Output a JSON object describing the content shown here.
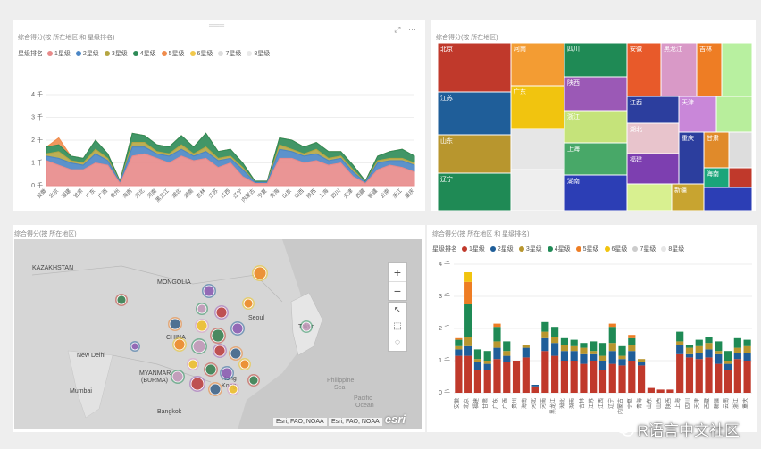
{
  "area_chart": {
    "title": "综合得分(按 所在地区 和 星级排名)",
    "legend_title": "星级排名",
    "toolbar": [
      "⤢",
      "···"
    ],
    "handle": "═══"
  },
  "treemap": {
    "title": "综合得分(按 所在地区)"
  },
  "map": {
    "title": "综合得分(按 所在地区)",
    "labels": [
      {
        "text": "KAZAKHSTAN"
      },
      {
        "text": "MONGOLIA"
      },
      {
        "text": "CHINA"
      },
      {
        "text": "New Delhi"
      },
      {
        "text": "Mumbai"
      },
      {
        "text": "MYANMAR"
      },
      {
        "text": "(BURMA)"
      },
      {
        "text": "Bangkok"
      },
      {
        "text": "Philippine"
      },
      {
        "text": "Sea"
      },
      {
        "text": "Pacific"
      },
      {
        "text": "Ocean"
      },
      {
        "text": "Tokyo"
      },
      {
        "text": "Seoul"
      },
      {
        "text": "Hong"
      },
      {
        "text": "Kong"
      }
    ],
    "zoom_in": "+",
    "zoom_out": "−",
    "attribution_1": "Esri, FAO, NOAA",
    "attribution_2": "Esri, FAO, NOAA",
    "esri": "esri"
  },
  "bar_chart": {
    "title": "综合得分(按 所在地区 和 星级排名)",
    "legend_title": "星级排名"
  },
  "watermark": "R语言中文社区",
  "chart_data": [
    {
      "type": "area",
      "title": "综合得分(按 所在地区 和 星级排名)",
      "legend_title": "星级排名",
      "y_ticks": [
        "0 千",
        "1 千",
        "2 千",
        "3 千",
        "4 千"
      ],
      "ylim": [
        0,
        4000
      ],
      "categories": [
        "安徽",
        "北京",
        "福建",
        "甘肃",
        "广东",
        "广西",
        "贵州",
        "海南",
        "河北",
        "河南",
        "黑龙江",
        "湖北",
        "湖南",
        "吉林",
        "江苏",
        "江西",
        "辽宁",
        "内蒙古",
        "宁夏",
        "青海",
        "山东",
        "山西",
        "陕西",
        "上海",
        "四川",
        "天津",
        "西藏",
        "新疆",
        "云南",
        "浙江",
        "重庆"
      ],
      "x_labels": [
        "安徽",
        "北京",
        "福建",
        "甘肃",
        "广东",
        "广西",
        "贵州",
        "海南",
        "河北",
        "河南",
        "黑龙江",
        "湖北",
        "湖南",
        "吉林",
        "江苏",
        "江西",
        "辽宁",
        "内蒙古",
        "宁夏",
        "青海",
        "山东",
        "山西",
        "陕西",
        "上海",
        "四川",
        "天津",
        "西藏",
        "新疆",
        "云南",
        "浙江",
        "重庆"
      ],
      "series": [
        {
          "name": "1星级",
          "color": "#e88a8a",
          "values": [
            1100,
            900,
            700,
            700,
            1000,
            900,
            100,
            1300,
            1400,
            1200,
            1000,
            1300,
            1100,
            1200,
            800,
            1000,
            400,
            100,
            100,
            1200,
            1200,
            1000,
            1100,
            900,
            1000,
            400,
            100,
            700,
            900,
            800,
            600
          ]
        },
        {
          "name": "2星级",
          "color": "#4a86c5",
          "values": [
            200,
            300,
            300,
            200,
            400,
            200,
            50,
            400,
            300,
            200,
            300,
            300,
            200,
            300,
            300,
            200,
            300,
            50,
            50,
            400,
            300,
            300,
            300,
            200,
            200,
            200,
            50,
            300,
            200,
            300,
            300
          ]
        },
        {
          "name": "3星级",
          "color": "#b5a642",
          "values": [
            100,
            300,
            100,
            100,
            200,
            100,
            0,
            200,
            200,
            100,
            100,
            200,
            100,
            200,
            100,
            100,
            100,
            0,
            0,
            200,
            100,
            100,
            200,
            100,
            100,
            100,
            0,
            100,
            100,
            100,
            100
          ]
        },
        {
          "name": "4星级",
          "color": "#2e8b57",
          "values": [
            300,
            300,
            200,
            200,
            400,
            200,
            50,
            400,
            300,
            300,
            300,
            400,
            300,
            600,
            300,
            300,
            200,
            50,
            50,
            300,
            400,
            300,
            300,
            300,
            200,
            200,
            50,
            200,
            300,
            400,
            300
          ]
        },
        {
          "name": "5星级",
          "color": "#f08c4c",
          "values": [
            0,
            300,
            0,
            0,
            0,
            0,
            0,
            0,
            0,
            0,
            0,
            0,
            0,
            0,
            0,
            0,
            0,
            0,
            0,
            0,
            0,
            0,
            0,
            0,
            0,
            0,
            0,
            0,
            0,
            0,
            0
          ]
        },
        {
          "name": "6星级",
          "color": "#f2c94c",
          "values": [
            0,
            0,
            0,
            0,
            0,
            0,
            0,
            0,
            0,
            0,
            0,
            0,
            0,
            0,
            0,
            0,
            0,
            0,
            0,
            0,
            0,
            0,
            0,
            0,
            0,
            0,
            0,
            0,
            0,
            0,
            0
          ]
        },
        {
          "name": "7星级",
          "color": "#dddddd",
          "values": [
            0,
            0,
            0,
            0,
            0,
            0,
            0,
            0,
            0,
            0,
            0,
            0,
            0,
            0,
            0,
            0,
            0,
            0,
            0,
            0,
            0,
            0,
            0,
            0,
            0,
            0,
            0,
            0,
            0,
            0,
            0
          ]
        },
        {
          "name": "8星级",
          "color": "#e9e9e9",
          "values": [
            0,
            0,
            0,
            0,
            0,
            0,
            0,
            0,
            0,
            0,
            0,
            0,
            0,
            0,
            0,
            0,
            0,
            0,
            0,
            0,
            0,
            0,
            0,
            0,
            0,
            0,
            0,
            0,
            0,
            0,
            0
          ]
        }
      ]
    },
    {
      "type": "treemap",
      "title": "综合得分(按 所在地区)",
      "items": [
        {
          "label": "北京",
          "color": "#c0392b"
        },
        {
          "label": "江苏",
          "color": "#1f5e99"
        },
        {
          "label": "山东",
          "color": "#b8962e"
        },
        {
          "label": "辽宁",
          "color": "#1f8a55"
        },
        {
          "label": "河南",
          "color": "#f39c33"
        },
        {
          "label": "广东",
          "color": "#f1c40f"
        },
        {
          "label": "",
          "color": "#e6e6e6"
        },
        {
          "label": "",
          "color": "#eeeeee"
        },
        {
          "label": "四川",
          "color": "#1f8a55"
        },
        {
          "label": "陕西",
          "color": "#9b59b6"
        },
        {
          "label": "浙江",
          "color": "#c5e37a"
        },
        {
          "label": "上海",
          "color": "#48a868"
        },
        {
          "label": "湖南",
          "color": "#2c3eb5"
        },
        {
          "label": "安徽",
          "color": "#e85a2a"
        },
        {
          "label": "黑龙江",
          "color": "#d999c7"
        },
        {
          "label": "吉林",
          "color": "#ee7d24"
        },
        {
          "label": "",
          "color": "#b8f0a0"
        },
        {
          "label": "江西",
          "color": "#2c3e9e"
        },
        {
          "label": "天津",
          "color": "#c987d9"
        },
        {
          "label": "",
          "color": "#b8ee9c"
        },
        {
          "label": "湖北",
          "color": "#e8c4cc"
        },
        {
          "label": "福建",
          "color": "#7d3fb0"
        },
        {
          "label": "",
          "color": "#d8f090"
        },
        {
          "label": "新疆",
          "color": "#c8a430"
        },
        {
          "label": "重庆",
          "color": "#2c3e9e"
        },
        {
          "label": "甘肃",
          "color": "#e08a2a"
        },
        {
          "label": "",
          "color": "#dddddd"
        },
        {
          "label": "海南",
          "color": "#1aa57a"
        },
        {
          "label": "",
          "color": "#c0392b"
        },
        {
          "label": "",
          "color": "#2c3eb5"
        }
      ]
    },
    {
      "type": "bar",
      "stacked": true,
      "title": "综合得分(按 所在地区 和 星级排名)",
      "legend_title": "星级排名",
      "y_ticks": [
        "0 千",
        "1 千",
        "2 千",
        "3 千",
        "4 千"
      ],
      "ylim": [
        0,
        4000
      ],
      "categories": [
        "安徽",
        "北京",
        "福建",
        "甘肃",
        "广东",
        "广西",
        "贵州",
        "海南",
        "河北",
        "河南",
        "黑龙江",
        "湖北",
        "湖南",
        "吉林",
        "江苏",
        "江西",
        "辽宁",
        "内蒙古",
        "宁夏",
        "青海",
        "山东",
        "山西",
        "陕西",
        "上海",
        "四川",
        "天津",
        "西藏",
        "新疆",
        "云南",
        "浙江",
        "重庆"
      ],
      "x_labels": [
        "安徽",
        "北京",
        "福建",
        "甘肃",
        "广东",
        "广西",
        "贵州",
        "海南",
        "河北",
        "河南",
        "黑龙江",
        "湖北",
        "湖南",
        "吉林",
        "江苏",
        "江西",
        "辽宁",
        "内蒙古",
        "宁夏",
        "青海",
        "山东",
        "山西",
        "陕西",
        "上海",
        "四川",
        "天津",
        "西藏",
        "新疆",
        "云南",
        "浙江",
        "重庆"
      ],
      "series": [
        {
          "name": "1星级",
          "color": "#c0392b",
          "values": [
            1150,
            1150,
            700,
            700,
            1050,
            950,
            1000,
            1100,
            200,
            1300,
            1150,
            1000,
            1000,
            900,
            1000,
            700,
            900,
            850,
            1000,
            850,
            150,
            100,
            100,
            1200,
            1100,
            1050,
            1100,
            900,
            700,
            1050,
            1000
          ]
        },
        {
          "name": "2星级",
          "color": "#1f5e99",
          "values": [
            200,
            300,
            250,
            200,
            350,
            200,
            0,
            300,
            50,
            400,
            400,
            300,
            300,
            300,
            200,
            300,
            400,
            200,
            300,
            100,
            0,
            0,
            0,
            300,
            100,
            200,
            250,
            300,
            200,
            200,
            250
          ]
        },
        {
          "name": "3星级",
          "color": "#b8962e",
          "values": [
            100,
            300,
            100,
            100,
            200,
            150,
            0,
            100,
            0,
            200,
            200,
            200,
            150,
            200,
            100,
            150,
            250,
            100,
            200,
            100,
            0,
            0,
            0,
            100,
            200,
            200,
            200,
            100,
            100,
            150,
            200
          ]
        },
        {
          "name": "4星级",
          "color": "#1f8a55",
          "values": [
            200,
            1000,
            300,
            300,
            450,
            300,
            0,
            0,
            0,
            300,
            300,
            200,
            200,
            150,
            300,
            400,
            500,
            300,
            200,
            0,
            0,
            0,
            0,
            300,
            100,
            200,
            200,
            300,
            300,
            300,
            200
          ]
        },
        {
          "name": "5星级",
          "color": "#ee7d24",
          "values": [
            50,
            700,
            0,
            0,
            100,
            0,
            0,
            0,
            0,
            0,
            0,
            0,
            0,
            0,
            0,
            0,
            100,
            0,
            100,
            0,
            0,
            0,
            0,
            0,
            0,
            0,
            0,
            0,
            0,
            0,
            0
          ]
        },
        {
          "name": "6星级",
          "color": "#f1c40f",
          "values": [
            0,
            300,
            0,
            0,
            0,
            0,
            0,
            0,
            0,
            0,
            0,
            0,
            0,
            0,
            0,
            0,
            0,
            0,
            0,
            0,
            0,
            0,
            0,
            0,
            0,
            0,
            0,
            0,
            0,
            0,
            0
          ]
        },
        {
          "name": "7星级",
          "color": "#cccccc",
          "values": [
            0,
            0,
            0,
            0,
            0,
            0,
            0,
            0,
            0,
            0,
            0,
            0,
            0,
            0,
            0,
            0,
            0,
            0,
            0,
            0,
            0,
            0,
            0,
            0,
            0,
            0,
            0,
            0,
            0,
            0,
            0
          ]
        },
        {
          "name": "8星级",
          "color": "#e6e6e6",
          "values": [
            0,
            0,
            0,
            0,
            0,
            0,
            0,
            0,
            0,
            0,
            0,
            0,
            0,
            0,
            0,
            0,
            0,
            0,
            0,
            0,
            0,
            0,
            0,
            0,
            0,
            0,
            0,
            0,
            0,
            0,
            0
          ]
        }
      ]
    }
  ]
}
